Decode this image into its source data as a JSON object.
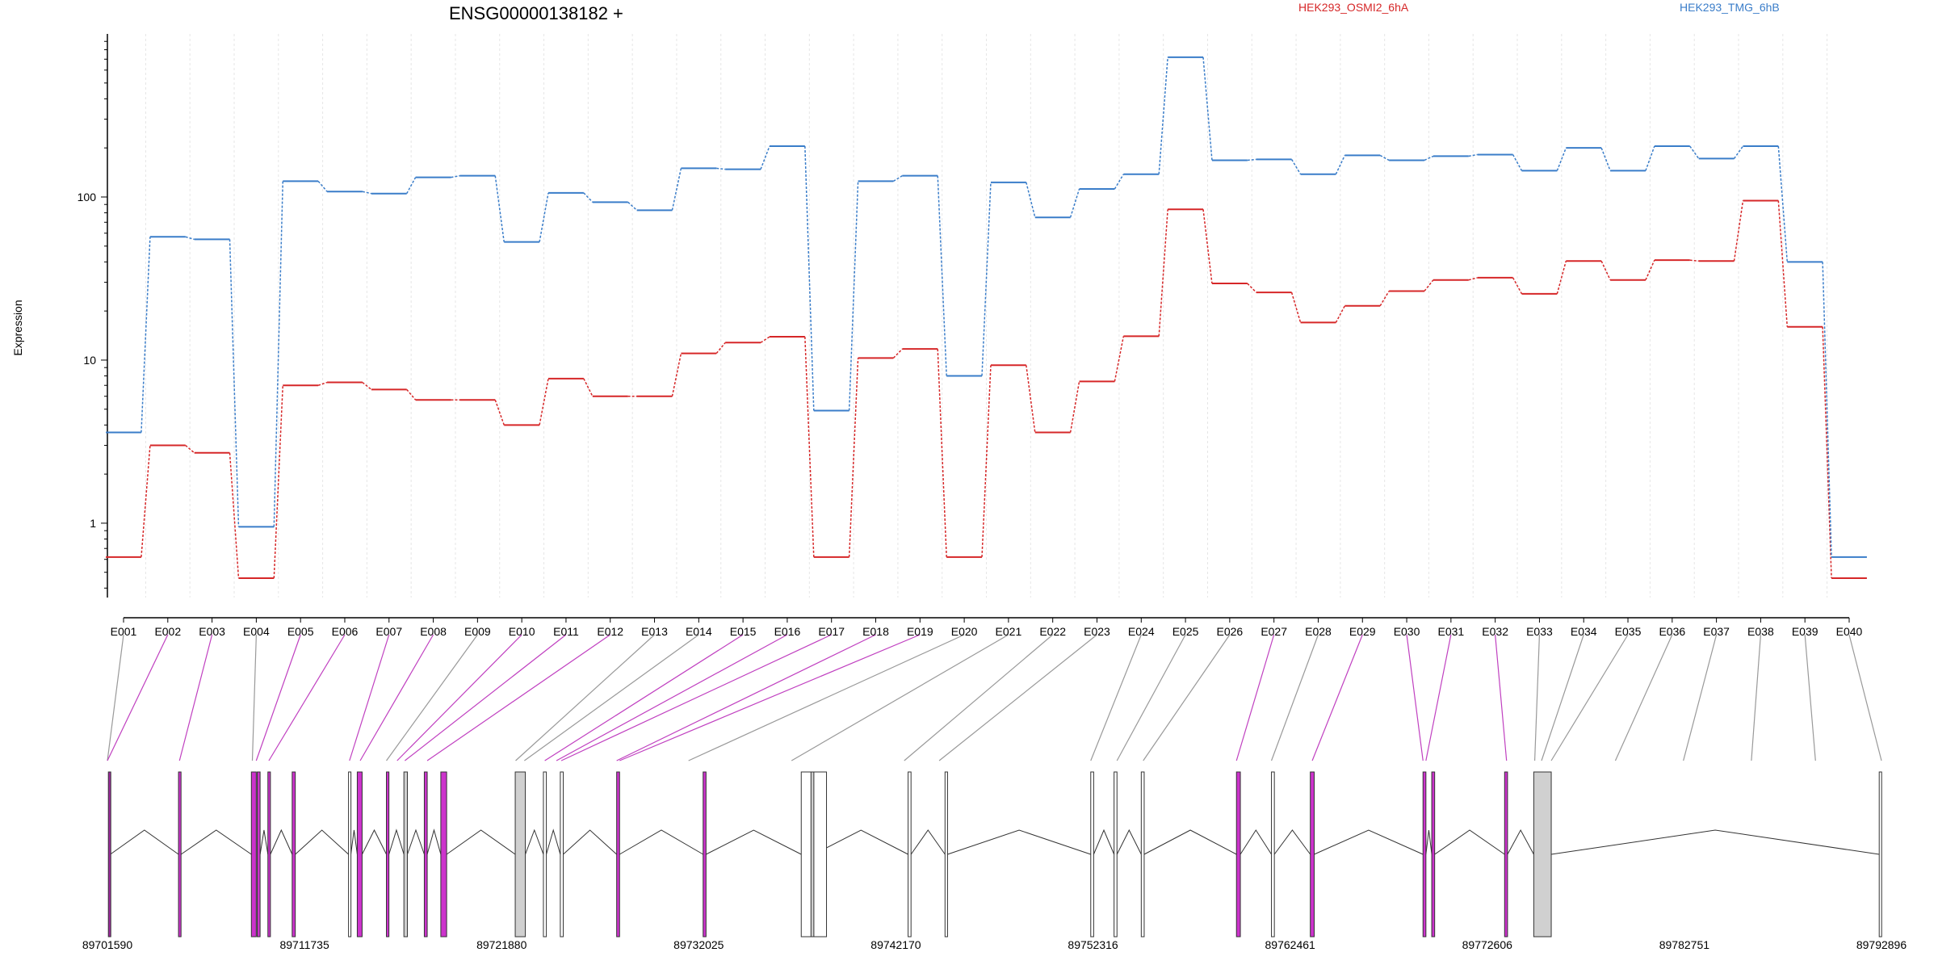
{
  "chart_data": {
    "type": "line",
    "title": "ENSG00000138182 +",
    "ylabel": "Expression",
    "yscale": "log",
    "ylim": [
      0.35,
      1000
    ],
    "yticks": [
      1,
      10,
      100
    ],
    "ytick_labels": [
      "1",
      "10",
      "100"
    ],
    "categories": [
      "E001",
      "E002",
      "E003",
      "E004",
      "E005",
      "E006",
      "E007",
      "E008",
      "E009",
      "E010",
      "E011",
      "E012",
      "E013",
      "E014",
      "E015",
      "E016",
      "E017",
      "E018",
      "E019",
      "E020",
      "E021",
      "E022",
      "E023",
      "E024",
      "E025",
      "E026",
      "E027",
      "E028",
      "E029",
      "E030",
      "E031",
      "E032",
      "E033",
      "E034",
      "E035",
      "E036",
      "E037",
      "E038",
      "E039",
      "E040"
    ],
    "legend_position": "top",
    "series": [
      {
        "name": "HEK293_OSMI2_6hA",
        "color": "#d62728",
        "values": [
          0.62,
          3.0,
          2.7,
          0.46,
          7.0,
          7.3,
          6.6,
          5.7,
          5.7,
          4.0,
          7.7,
          6.0,
          6.0,
          11.0,
          12.8,
          13.9,
          0.62,
          10.3,
          11.7,
          0.62,
          9.3,
          3.6,
          7.4,
          14.0,
          84.0,
          29.5,
          26.0,
          17.0,
          21.5,
          26.5,
          31.0,
          32.0,
          25.5,
          40.5,
          31.0,
          41.0,
          40.5,
          95.0,
          16.0,
          0.46
        ]
      },
      {
        "name": "HEK293_TMG_6hB",
        "color": "#3a7dc9",
        "values": [
          3.6,
          57.0,
          55.0,
          0.95,
          125.0,
          108.0,
          105.0,
          132.0,
          135.0,
          53.0,
          106.0,
          93.0,
          83.0,
          150.0,
          148.0,
          205.0,
          4.9,
          125.0,
          135.0,
          8.0,
          123.0,
          75.0,
          112.0,
          138.0,
          720.0,
          168.0,
          170.0,
          138.0,
          180.0,
          168.0,
          178.0,
          182.0,
          145.0,
          200.0,
          145.0,
          205.0,
          172.0,
          205.0,
          40.0,
          0.62
        ]
      }
    ],
    "genomic_ticks": [
      "89701590",
      "89711735",
      "89721880",
      "89732025",
      "89742170",
      "89752316",
      "89762461",
      "89772606",
      "89782751",
      "89792896"
    ],
    "gene_model": {
      "start": 89701590,
      "end": 89792896,
      "exon_starts": [
        89701640,
        89705250,
        89709000,
        89709300,
        89709850,
        89711100,
        89714000,
        89714450,
        89715950,
        89716850,
        89717900,
        89718750,
        89722580,
        89724030,
        89724900,
        89727800,
        89732250,
        89737300,
        89737800,
        89742800,
        89744700,
        89752200,
        89753400,
        89754800,
        89759700,
        89761500,
        89763500,
        89769300,
        89769750,
        89773500,
        89775000,
        89792780
      ],
      "exon_ends": [
        89701740,
        89705380,
        89709250,
        89709450,
        89709980,
        89711260,
        89714120,
        89714700,
        89716080,
        89717030,
        89718050,
        89719050,
        89723100,
        89724180,
        89725050,
        89727950,
        89732400,
        89738600,
        89737950,
        89742950,
        89744830,
        89752350,
        89753550,
        89754950,
        89759900,
        89761650,
        89763700,
        89769450,
        89769900,
        89773650,
        89775900,
        89792896
      ],
      "exon_highlighted": [
        true,
        true,
        true,
        true,
        true,
        true,
        false,
        true,
        true,
        false,
        true,
        true,
        false,
        false,
        false,
        true,
        true,
        false,
        false,
        false,
        false,
        false,
        false,
        false,
        true,
        false,
        true,
        true,
        true,
        true,
        false,
        false
      ],
      "exon_fill": [
        "#9e2a9e",
        "#cc33cc",
        "#cc33cc",
        "#cc33cc",
        "#cc33cc",
        "#cc33cc",
        "#ffffff",
        "#cc33cc",
        "#cc33cc",
        "#d0d0d0",
        "#cc33cc",
        "#cc33cc",
        "#d0d0d0",
        "#ffffff",
        "#ffffff",
        "#cc33cc",
        "#cc33cc",
        "#ffffff",
        "#d0d0d0",
        "#ffffff",
        "#ffffff",
        "#ffffff",
        "#ffffff",
        "#ffffff",
        "#cc33cc",
        "#ffffff",
        "#cc33cc",
        "#cc33cc",
        "#cc33cc",
        "#cc33cc",
        "#d0d0d0",
        "#ffffff"
      ],
      "bin_links": [
        {
          "bin": "E001",
          "pos": 89701590,
          "highlighted": false
        },
        {
          "bin": "E002",
          "pos": 89701590,
          "highlighted": true
        },
        {
          "bin": "E003",
          "pos": 89705300,
          "highlighted": true
        },
        {
          "bin": "E004",
          "pos": 89709050,
          "highlighted": false
        },
        {
          "bin": "E005",
          "pos": 89709250,
          "highlighted": true
        },
        {
          "bin": "E006",
          "pos": 89709900,
          "highlighted": true
        },
        {
          "bin": "E007",
          "pos": 89714050,
          "highlighted": true
        },
        {
          "bin": "E008",
          "pos": 89714600,
          "highlighted": true
        },
        {
          "bin": "E009",
          "pos": 89715950,
          "highlighted": false
        },
        {
          "bin": "E010",
          "pos": 89716500,
          "highlighted": true
        },
        {
          "bin": "E011",
          "pos": 89716900,
          "highlighted": true
        },
        {
          "bin": "E012",
          "pos": 89718050,
          "highlighted": true
        },
        {
          "bin": "E013",
          "pos": 89722600,
          "highlighted": false
        },
        {
          "bin": "E014",
          "pos": 89723050,
          "highlighted": false
        },
        {
          "bin": "E015",
          "pos": 89724100,
          "highlighted": true
        },
        {
          "bin": "E016",
          "pos": 89724700,
          "highlighted": true
        },
        {
          "bin": "E017",
          "pos": 89724950,
          "highlighted": true
        },
        {
          "bin": "E018",
          "pos": 89727800,
          "highlighted": true
        },
        {
          "bin": "E019",
          "pos": 89727950,
          "highlighted": true
        },
        {
          "bin": "E020",
          "pos": 89731500,
          "highlighted": false
        },
        {
          "bin": "E021",
          "pos": 89736800,
          "highlighted": false
        },
        {
          "bin": "E022",
          "pos": 89742600,
          "highlighted": false
        },
        {
          "bin": "E023",
          "pos": 89744400,
          "highlighted": false
        },
        {
          "bin": "E024",
          "pos": 89752200,
          "highlighted": false
        },
        {
          "bin": "E025",
          "pos": 89753550,
          "highlighted": false
        },
        {
          "bin": "E026",
          "pos": 89754900,
          "highlighted": false
        },
        {
          "bin": "E027",
          "pos": 89759700,
          "highlighted": true
        },
        {
          "bin": "E028",
          "pos": 89761500,
          "highlighted": false
        },
        {
          "bin": "E029",
          "pos": 89763600,
          "highlighted": true
        },
        {
          "bin": "E030",
          "pos": 89769300,
          "highlighted": true
        },
        {
          "bin": "E031",
          "pos": 89769450,
          "highlighted": true
        },
        {
          "bin": "E032",
          "pos": 89773600,
          "highlighted": true
        },
        {
          "bin": "E033",
          "pos": 89775050,
          "highlighted": false
        },
        {
          "bin": "E034",
          "pos": 89775400,
          "highlighted": false
        },
        {
          "bin": "E035",
          "pos": 89775900,
          "highlighted": false
        },
        {
          "bin": "E036",
          "pos": 89779200,
          "highlighted": false
        },
        {
          "bin": "E037",
          "pos": 89782700,
          "highlighted": false
        },
        {
          "bin": "E038",
          "pos": 89786200,
          "highlighted": false
        },
        {
          "bin": "E039",
          "pos": 89789500,
          "highlighted": false
        },
        {
          "bin": "E040",
          "pos": 89792896,
          "highlighted": false
        }
      ]
    }
  }
}
